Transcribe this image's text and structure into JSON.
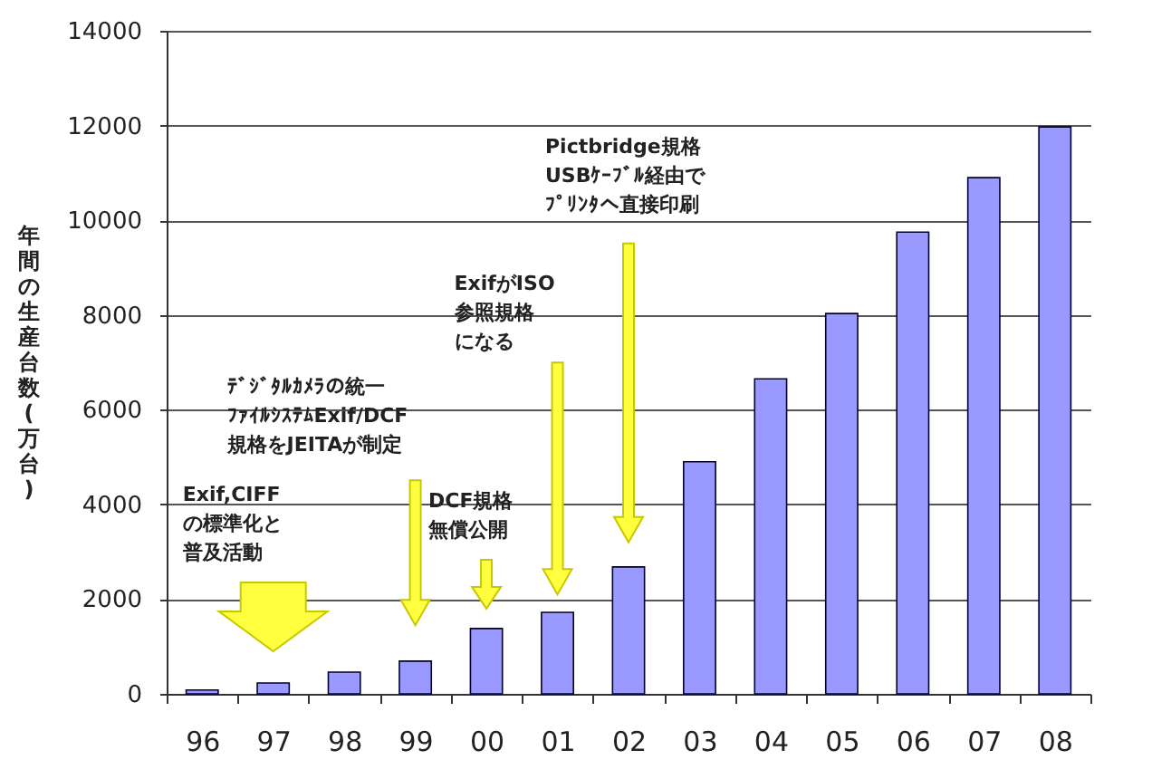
{
  "chart_data": {
    "type": "bar",
    "ylabel": "年間の生産台数(万台)",
    "categories": [
      "96",
      "97",
      "98",
      "99",
      "00",
      "01",
      "02",
      "03",
      "04",
      "05",
      "06",
      "07",
      "08"
    ],
    "values": [
      80,
      230,
      460,
      690,
      1380,
      1720,
      2680,
      4900,
      6650,
      8030,
      9750,
      10900,
      11970
    ],
    "color": "#9999ff",
    "ylim": [
      0,
      14000
    ],
    "yticks": [
      0,
      2000,
      4000,
      6000,
      8000,
      10000,
      12000,
      14000
    ],
    "grid": "y",
    "annotations": [
      "Exif,CIFFの標準化と普及活動",
      "ﾃﾞｼﾞﾀﾙｶﾒﾗの統一ﾌｧｲﾙｼｽﾃﾑExif/DCF規格をJEITAが制定",
      "DCF規格無償公開",
      "ExifがISO参照規格になる",
      "Pictbridge規格USBｹｰﾌﾞﾙ経由でﾌﾟﾘﾝﾀへ直接印刷"
    ]
  }
}
